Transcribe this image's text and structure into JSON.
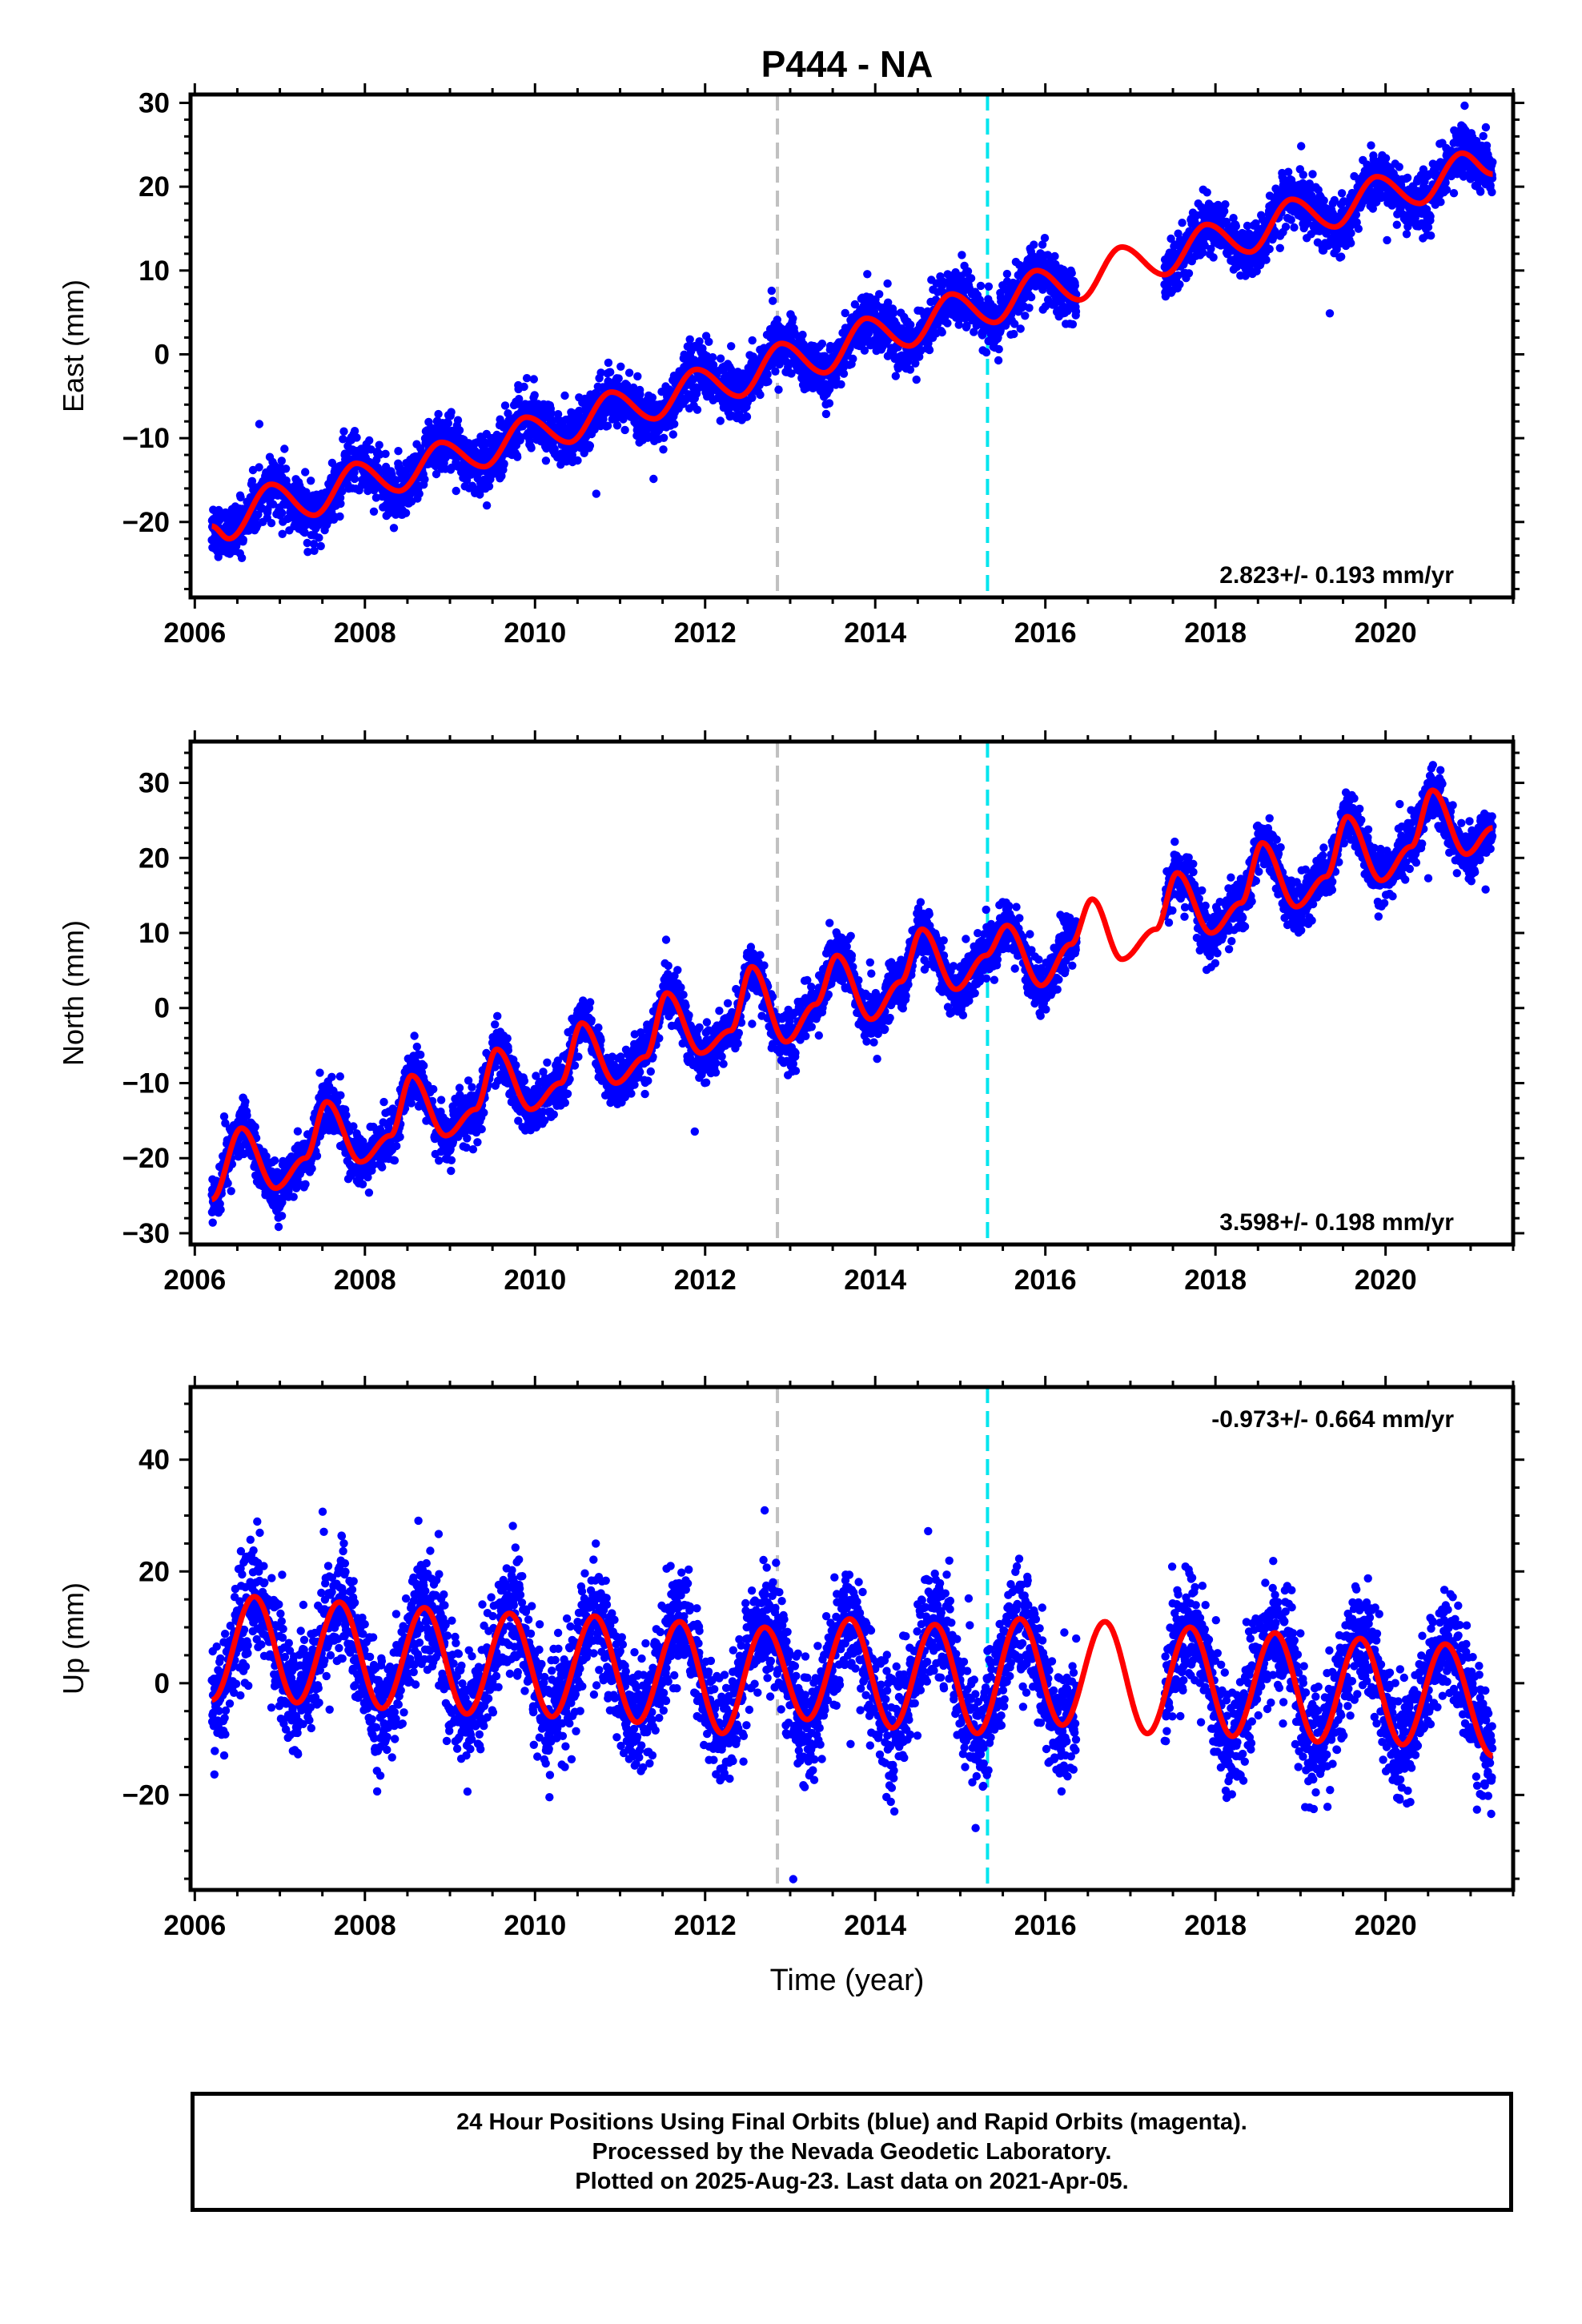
{
  "title": "P444 - NA",
  "xlabel": "Time (year)",
  "footer": {
    "line1": "24 Hour Positions Using Final Orbits (blue) and Rapid Orbits (magenta).",
    "line2": "Processed by the Nevada Geodetic Laboratory.",
    "line3": "Plotted on 2025-Aug-23. Last data on 2021-Apr-05."
  },
  "colors": {
    "data_points": "#0000ff",
    "model_fit": "#ff0000",
    "event_gray": "#c0c0c0",
    "event_cyan": "#00e5ee",
    "axis": "#000000"
  },
  "chart_data": [
    {
      "type": "scatter",
      "component": "East",
      "ylabel": "East (mm)",
      "xlim": [
        2005.95,
        2021.5
      ],
      "ylim": [
        -29,
        31
      ],
      "xticks": [
        2006,
        2008,
        2010,
        2012,
        2014,
        2016,
        2018,
        2020
      ],
      "yticks": [
        -20,
        -10,
        0,
        10,
        20,
        30
      ],
      "rate_label": "2.823+/- 0.193 mm/yr",
      "rate_mm_per_yr": 2.823,
      "intercept_mm_at_2006_2": -20.5,
      "annual_amplitude_mm": 3.0,
      "annual_peak_year_fraction": 0.85,
      "scatter_std_mm": 1.6,
      "data_start": 2006.2,
      "data_end": 2021.26,
      "gap": [
        2016.37,
        2017.4
      ],
      "model_points": [
        [
          2006.2,
          -20.5
        ],
        [
          2006.4,
          -22.0
        ],
        [
          2006.9,
          -15.5
        ],
        [
          2007.4,
          -19.2
        ],
        [
          2007.9,
          -13.0
        ],
        [
          2008.4,
          -16.3
        ],
        [
          2008.9,
          -10.5
        ],
        [
          2009.4,
          -13.4
        ],
        [
          2009.9,
          -7.5
        ],
        [
          2010.4,
          -10.5
        ],
        [
          2010.9,
          -4.5
        ],
        [
          2011.4,
          -7.7
        ],
        [
          2011.9,
          -1.8
        ],
        [
          2012.4,
          -5.0
        ],
        [
          2012.9,
          1.3
        ],
        [
          2013.4,
          -2.2
        ],
        [
          2013.9,
          4.3
        ],
        [
          2014.4,
          1.0
        ],
        [
          2014.9,
          7.2
        ],
        [
          2015.4,
          3.8
        ],
        [
          2015.9,
          10.0
        ],
        [
          2016.4,
          6.5
        ],
        [
          2016.9,
          12.8
        ],
        [
          2017.4,
          9.5
        ],
        [
          2017.9,
          15.5
        ],
        [
          2018.4,
          12.2
        ],
        [
          2018.9,
          18.5
        ],
        [
          2019.4,
          15.2
        ],
        [
          2019.9,
          21.2
        ],
        [
          2020.4,
          18.0
        ],
        [
          2020.9,
          24.0
        ],
        [
          2021.26,
          21.5
        ]
      ]
    },
    {
      "type": "scatter",
      "component": "North",
      "ylabel": "North (mm)",
      "xlim": [
        2005.95,
        2021.5
      ],
      "ylim": [
        -31.5,
        35.5
      ],
      "xticks": [
        2006,
        2008,
        2010,
        2012,
        2014,
        2016,
        2018,
        2020
      ],
      "yticks": [
        -30,
        -20,
        -10,
        0,
        10,
        20,
        30
      ],
      "rate_label": "3.598+/- 0.198 mm/yr",
      "rate_mm_per_yr": 3.598,
      "intercept_mm_at_2006_2": -25.5,
      "annual_amplitude_mm": 4.5,
      "annual_peak_year_fraction": 0.55,
      "scatter_std_mm": 1.7,
      "data_start": 2006.2,
      "data_end": 2021.26,
      "gap": [
        2016.37,
        2017.4
      ],
      "model_points": [
        [
          2006.2,
          -25.5
        ],
        [
          2006.55,
          -16.0
        ],
        [
          2006.95,
          -24.0
        ],
        [
          2007.3,
          -20.0
        ],
        [
          2007.55,
          -12.5
        ],
        [
          2007.95,
          -20.5
        ],
        [
          2008.3,
          -17.0
        ],
        [
          2008.55,
          -9.0
        ],
        [
          2008.95,
          -17.0
        ],
        [
          2009.3,
          -13.5
        ],
        [
          2009.55,
          -5.5
        ],
        [
          2009.95,
          -13.5
        ],
        [
          2010.3,
          -10.0
        ],
        [
          2010.55,
          -2.0
        ],
        [
          2010.95,
          -10.0
        ],
        [
          2011.3,
          -6.5
        ],
        [
          2011.55,
          2.0
        ],
        [
          2011.95,
          -6.0
        ],
        [
          2012.3,
          -3.0
        ],
        [
          2012.55,
          5.5
        ],
        [
          2012.95,
          -4.5
        ],
        [
          2013.3,
          0.5
        ],
        [
          2013.55,
          7.0
        ],
        [
          2013.95,
          -1.5
        ],
        [
          2014.3,
          3.5
        ],
        [
          2014.55,
          10.5
        ],
        [
          2014.95,
          2.5
        ],
        [
          2015.3,
          7.0
        ],
        [
          2015.55,
          11.0
        ],
        [
          2015.95,
          3.0
        ],
        [
          2016.3,
          8.5
        ],
        [
          2016.55,
          14.5
        ],
        [
          2016.9,
          6.5
        ],
        [
          2017.3,
          10.5
        ],
        [
          2017.55,
          18.0
        ],
        [
          2017.95,
          10.0
        ],
        [
          2018.3,
          14.0
        ],
        [
          2018.55,
          22.0
        ],
        [
          2018.95,
          13.5
        ],
        [
          2019.3,
          17.5
        ],
        [
          2019.55,
          25.5
        ],
        [
          2019.95,
          17.0
        ],
        [
          2020.3,
          21.5
        ],
        [
          2020.55,
          29.0
        ],
        [
          2020.95,
          20.5
        ],
        [
          2021.26,
          24.0
        ]
      ]
    },
    {
      "type": "scatter",
      "component": "Up",
      "ylabel": "Up (mm)",
      "xlim": [
        2005.95,
        2021.5
      ],
      "ylim": [
        -37,
        53
      ],
      "xticks": [
        2006,
        2008,
        2010,
        2012,
        2014,
        2016,
        2018,
        2020
      ],
      "yticks": [
        -20,
        0,
        20,
        40
      ],
      "rate_label": "-0.973+/- 0.664 mm/yr",
      "rate_mm_per_yr": -0.973,
      "intercept_mm_at_2006_2": 5.5,
      "annual_amplitude_mm": 10.0,
      "annual_peak_year_fraction": 0.7,
      "scatter_std_mm": 5.0,
      "data_start": 2006.2,
      "data_end": 2021.26,
      "gap": [
        2016.37,
        2017.4
      ],
      "model_points": [
        [
          2006.2,
          -3.0
        ],
        [
          2006.7,
          15.5
        ],
        [
          2007.2,
          -3.5
        ],
        [
          2007.7,
          14.5
        ],
        [
          2008.2,
          -4.5
        ],
        [
          2008.7,
          13.5
        ],
        [
          2009.2,
          -5.5
        ],
        [
          2009.7,
          12.5
        ],
        [
          2010.2,
          -6.0
        ],
        [
          2010.7,
          12.0
        ],
        [
          2011.2,
          -7.0
        ],
        [
          2011.7,
          11.0
        ],
        [
          2012.2,
          -9.0
        ],
        [
          2012.7,
          10.0
        ],
        [
          2013.2,
          -6.5
        ],
        [
          2013.7,
          11.5
        ],
        [
          2014.2,
          -8.0
        ],
        [
          2014.7,
          10.5
        ],
        [
          2015.2,
          -9.0
        ],
        [
          2015.7,
          11.5
        ],
        [
          2016.2,
          -7.5
        ],
        [
          2016.7,
          11.0
        ],
        [
          2017.2,
          -9.0
        ],
        [
          2017.7,
          10.0
        ],
        [
          2018.2,
          -9.5
        ],
        [
          2018.7,
          9.0
        ],
        [
          2019.2,
          -10.5
        ],
        [
          2019.7,
          8.0
        ],
        [
          2020.2,
          -11.0
        ],
        [
          2020.7,
          7.0
        ],
        [
          2021.26,
          -13.0
        ]
      ]
    }
  ],
  "events": [
    {
      "year": 2012.85,
      "color": "gray"
    },
    {
      "year": 2015.32,
      "color": "cyan"
    }
  ]
}
